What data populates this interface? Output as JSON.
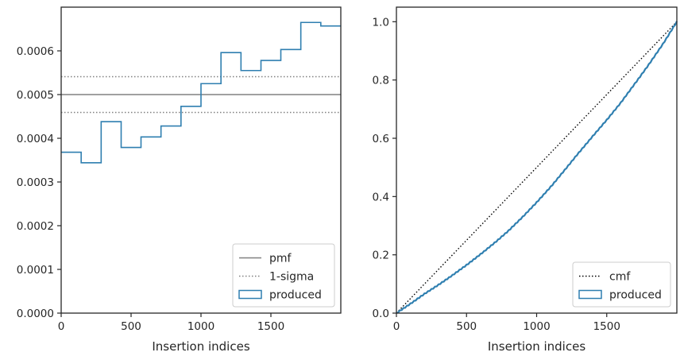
{
  "colors": {
    "produced": "#2f7fb0",
    "pmf": "#808080",
    "sigma": "#808080",
    "cmf": "#000000",
    "frame": "#262626"
  },
  "chart_data": [
    {
      "type": "step",
      "title": "",
      "xlabel": "Insertion indices",
      "ylabel": "",
      "xlim": [
        0,
        2000
      ],
      "ylim": [
        0,
        0.0007
      ],
      "xticks": [
        0,
        500,
        1000,
        1500
      ],
      "xtick_labels": [
        "0",
        "500",
        "1000",
        "1500"
      ],
      "yticks": [
        0,
        0.0001,
        0.0002,
        0.0003,
        0.0004,
        0.0005,
        0.0006
      ],
      "ytick_labels": [
        "0.0000",
        "0.0001",
        "0.0002",
        "0.0003",
        "0.0004",
        "0.0005",
        "0.0006"
      ],
      "grid": false,
      "legend_position": "lower right",
      "legend": [
        "pmf",
        "1-sigma",
        "produced"
      ],
      "pmf": 0.0005,
      "sigma_band": [
        0.000459,
        0.000541
      ],
      "series": [
        {
          "name": "produced",
          "bin_edges": [
            0,
            143,
            286,
            429,
            571,
            714,
            857,
            1000,
            1143,
            1286,
            1429,
            1571,
            1714,
            1857,
            2000
          ],
          "values": [
            0.000368,
            0.000344,
            0.000438,
            0.000379,
            0.000403,
            0.000428,
            0.000473,
            0.000525,
            0.000596,
            0.000555,
            0.000578,
            0.000603,
            0.000665,
            0.000657
          ]
        }
      ]
    },
    {
      "type": "line",
      "title": "",
      "xlabel": "Insertion indices",
      "ylabel": "",
      "xlim": [
        0,
        2000
      ],
      "ylim": [
        0,
        1.05
      ],
      "xticks": [
        0,
        500,
        1000,
        1500
      ],
      "xtick_labels": [
        "0",
        "500",
        "1000",
        "1500"
      ],
      "yticks": [
        0,
        0.2,
        0.4,
        0.6,
        0.8,
        1.0
      ],
      "ytick_labels": [
        "0.0",
        "0.2",
        "0.4",
        "0.6",
        "0.8",
        "1.0"
      ],
      "grid": false,
      "legend_position": "lower right",
      "legend": [
        "cmf",
        "produced"
      ],
      "series": [
        {
          "name": "cmf",
          "x": [
            0,
            2000
          ],
          "y": [
            0,
            1.0
          ]
        },
        {
          "name": "produced",
          "x": [
            0,
            100,
            200,
            300,
            400,
            500,
            600,
            700,
            800,
            900,
            1000,
            1100,
            1200,
            1300,
            1400,
            1500,
            1600,
            1700,
            1800,
            1900,
            2000
          ],
          "y": [
            0,
            0.032,
            0.066,
            0.097,
            0.13,
            0.165,
            0.202,
            0.241,
            0.283,
            0.33,
            0.38,
            0.433,
            0.491,
            0.55,
            0.607,
            0.663,
            0.722,
            0.787,
            0.853,
            0.923,
            1.0
          ]
        }
      ]
    }
  ]
}
